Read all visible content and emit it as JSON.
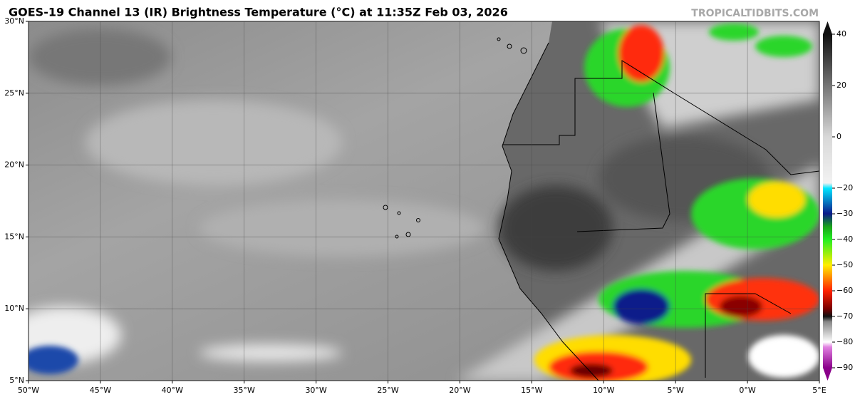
{
  "header": {
    "title": "GOES-19 Channel 13 (IR) Brightness Temperature (°C) at 11:35Z Feb 03, 2026",
    "credit": "TROPICALTIDBITS.COM"
  },
  "map": {
    "lonlim": [
      -50,
      5
    ],
    "latlim": [
      5,
      30
    ],
    "lon_ticks": [
      {
        "value": -50,
        "label": "50°W"
      },
      {
        "value": -45,
        "label": "45°W"
      },
      {
        "value": -40,
        "label": "40°W"
      },
      {
        "value": -35,
        "label": "35°W"
      },
      {
        "value": -30,
        "label": "30°W"
      },
      {
        "value": -25,
        "label": "25°W"
      },
      {
        "value": -20,
        "label": "20°W"
      },
      {
        "value": -15,
        "label": "15°W"
      },
      {
        "value": -10,
        "label": "10°W"
      },
      {
        "value": -5,
        "label": "5°W"
      },
      {
        "value": 0,
        "label": "0°W"
      },
      {
        "value": 5,
        "label": "5°E"
      }
    ],
    "lat_ticks": [
      {
        "value": 30,
        "label": "30°N"
      },
      {
        "value": 25,
        "label": "25°N"
      },
      {
        "value": 20,
        "label": "20°N"
      },
      {
        "value": 15,
        "label": "15°N"
      },
      {
        "value": 10,
        "label": "10°N"
      },
      {
        "value": 5,
        "label": "5°N"
      }
    ],
    "grid": true
  },
  "colorbar": {
    "clim": [
      -90,
      40
    ],
    "ticks": [
      40,
      20,
      0,
      {
        "value": -20,
        "label": "−20"
      },
      {
        "value": -30,
        "label": "−30"
      },
      {
        "value": -40,
        "label": "−40"
      },
      {
        "value": -50,
        "label": "−50"
      },
      {
        "value": -60,
        "label": "−60"
      },
      {
        "value": -70,
        "label": "−70"
      },
      {
        "value": -80,
        "label": "−80"
      },
      {
        "value": -90,
        "label": "−90"
      }
    ]
  }
}
